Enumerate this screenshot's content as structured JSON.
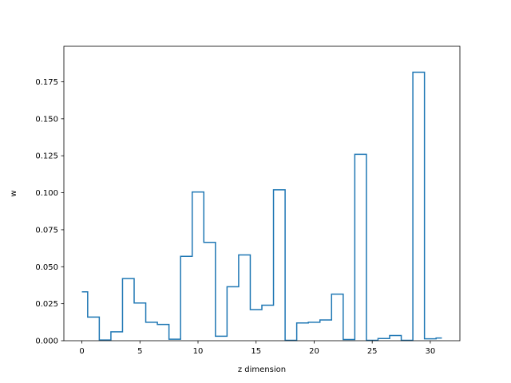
{
  "chart_data": {
    "type": "step",
    "xlabel": "z dimension",
    "ylabel": "w",
    "xlim": [
      -1.55,
      32.55
    ],
    "ylim": [
      0,
      0.199
    ],
    "xticks": [
      0,
      5,
      10,
      15,
      20,
      25,
      30
    ],
    "yticks": [
      0.0,
      0.025,
      0.05,
      0.075,
      0.1,
      0.125,
      0.15,
      0.175
    ],
    "ytick_labels": [
      "0.000",
      "0.025",
      "0.050",
      "0.075",
      "0.100",
      "0.125",
      "0.150",
      "0.175"
    ],
    "grid": false,
    "color": "#1f77b4",
    "x": [
      0,
      1,
      2,
      3,
      4,
      5,
      6,
      7,
      8,
      9,
      10,
      11,
      12,
      13,
      14,
      15,
      16,
      17,
      18,
      19,
      20,
      21,
      22,
      23,
      24,
      25,
      26,
      27,
      28,
      29,
      30,
      31
    ],
    "values": [
      0.033,
      0.016,
      0.0005,
      0.006,
      0.042,
      0.0255,
      0.0125,
      0.011,
      0.001,
      0.057,
      0.1005,
      0.0665,
      0.003,
      0.0365,
      0.058,
      0.021,
      0.024,
      0.102,
      0.0003,
      0.012,
      0.0125,
      0.014,
      0.0315,
      0.0008,
      0.126,
      0.0003,
      0.0015,
      0.0035,
      0.0003,
      0.1815,
      0.0013,
      0.0018
    ]
  }
}
